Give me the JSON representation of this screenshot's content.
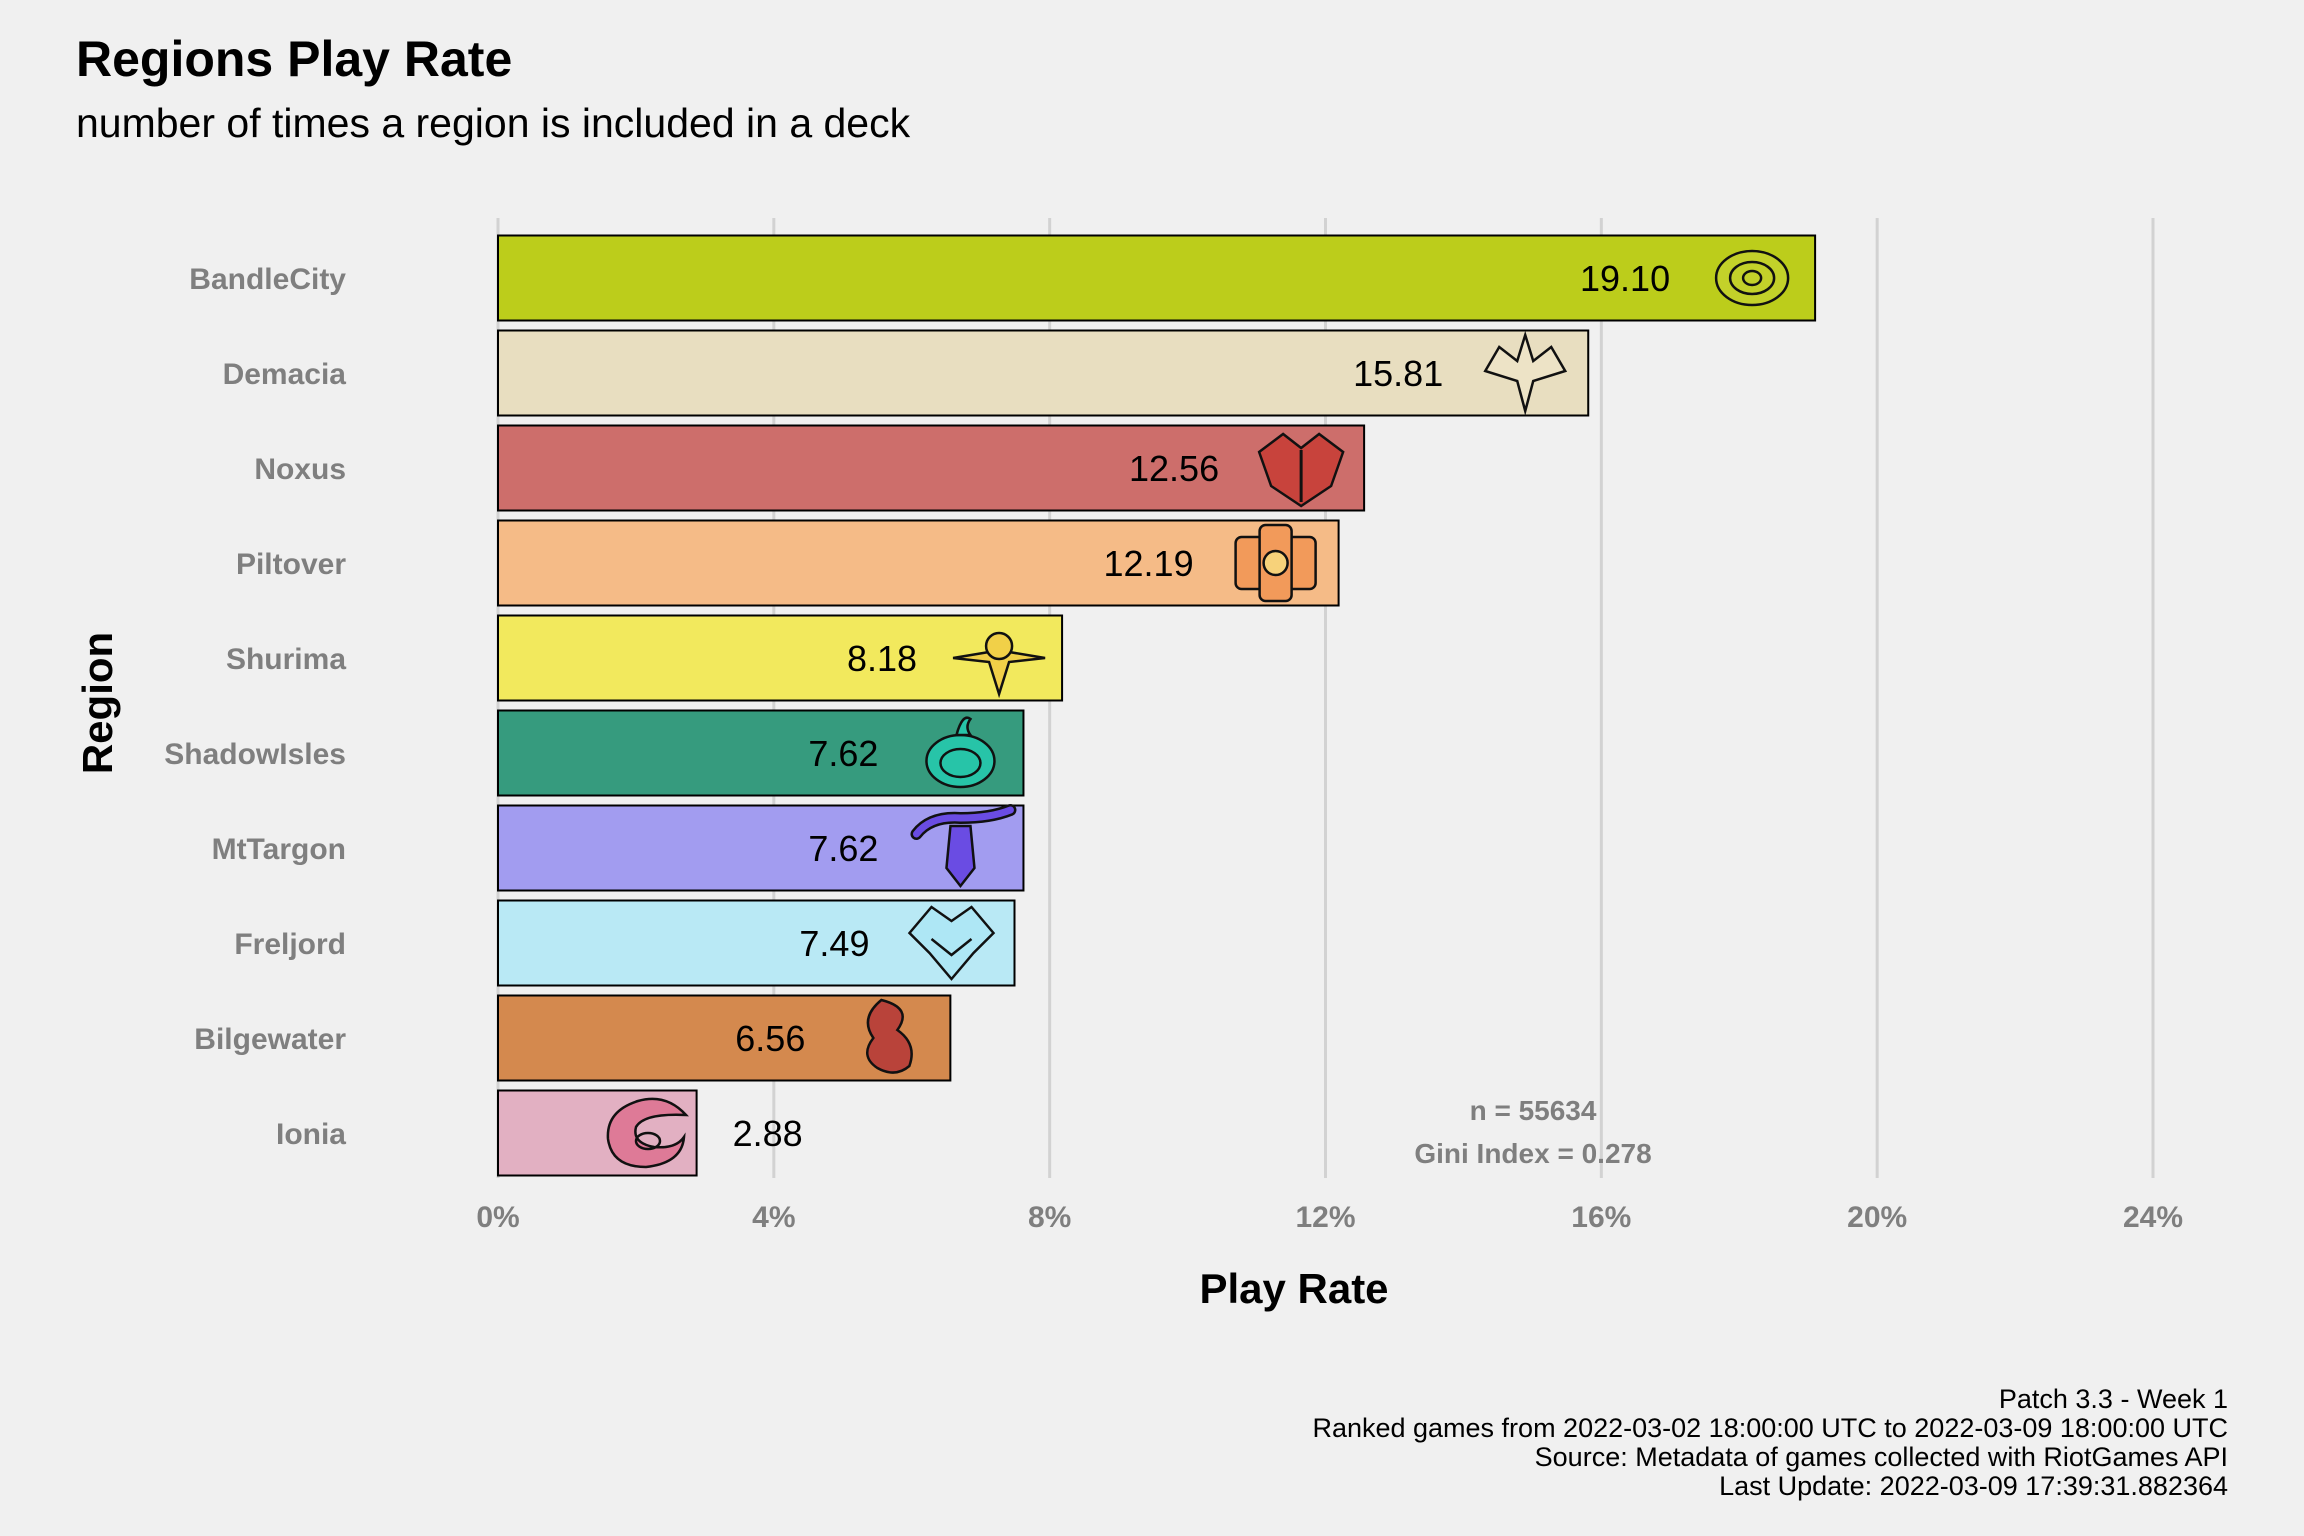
{
  "chart_data": {
    "type": "bar",
    "orientation": "horizontal",
    "title": "Regions Play Rate",
    "subtitle": "number of times a region is included in a deck",
    "xlabel": "Play Rate",
    "ylabel": "Region",
    "xlim": [
      0,
      24
    ],
    "x_ticks": [
      "0%",
      "4%",
      "8%",
      "12%",
      "16%",
      "20%",
      "24%"
    ],
    "grid": "vertical major gridlines",
    "categories": [
      "BandleCity",
      "Demacia",
      "Noxus",
      "Piltover",
      "Shurima",
      "ShadowIsles",
      "MtTargon",
      "Freljord",
      "Bilgewater",
      "Ionia"
    ],
    "values": [
      19.1,
      15.81,
      12.56,
      12.19,
      8.18,
      7.62,
      7.62,
      7.49,
      6.56,
      2.88
    ],
    "value_labels": [
      "19.10",
      "15.81",
      "12.56",
      "12.19",
      "8.18",
      "7.62",
      "7.62",
      "7.49",
      "6.56",
      "2.88"
    ],
    "colors": [
      "#bccd1b",
      "#e8dec0",
      "#cd6e6b",
      "#f5bb87",
      "#f2e95d",
      "#369b7e",
      "#a29cf0",
      "#b9e9f5",
      "#d4894e",
      "#e2b0c2"
    ],
    "icons": [
      "bandlecity-icon",
      "demacia-icon",
      "noxus-icon",
      "piltover-icon",
      "shurima-icon",
      "shadowisles-icon",
      "mttargon-icon",
      "freljord-icon",
      "bilgewater-icon",
      "ionia-icon"
    ],
    "icon_colors": [
      "#c3d12a",
      "#ede3c6",
      "#c8433c",
      "#f29a5a",
      "#f1d048",
      "#27c4a8",
      "#6a4ce3",
      "#aee7f5",
      "#b9433a",
      "#de7a97"
    ],
    "annotations": [
      "n = 55634",
      "Gini Index = 0.278"
    ]
  },
  "caption": [
    "Patch 3.3 - Week 1",
    "Ranked games from 2022-03-02 18:00:00 UTC to 2022-03-09 18:00:00 UTC",
    "Source: Metadata of games collected with RiotGames API",
    "Last Update: 2022-03-09 17:39:31.882364"
  ]
}
